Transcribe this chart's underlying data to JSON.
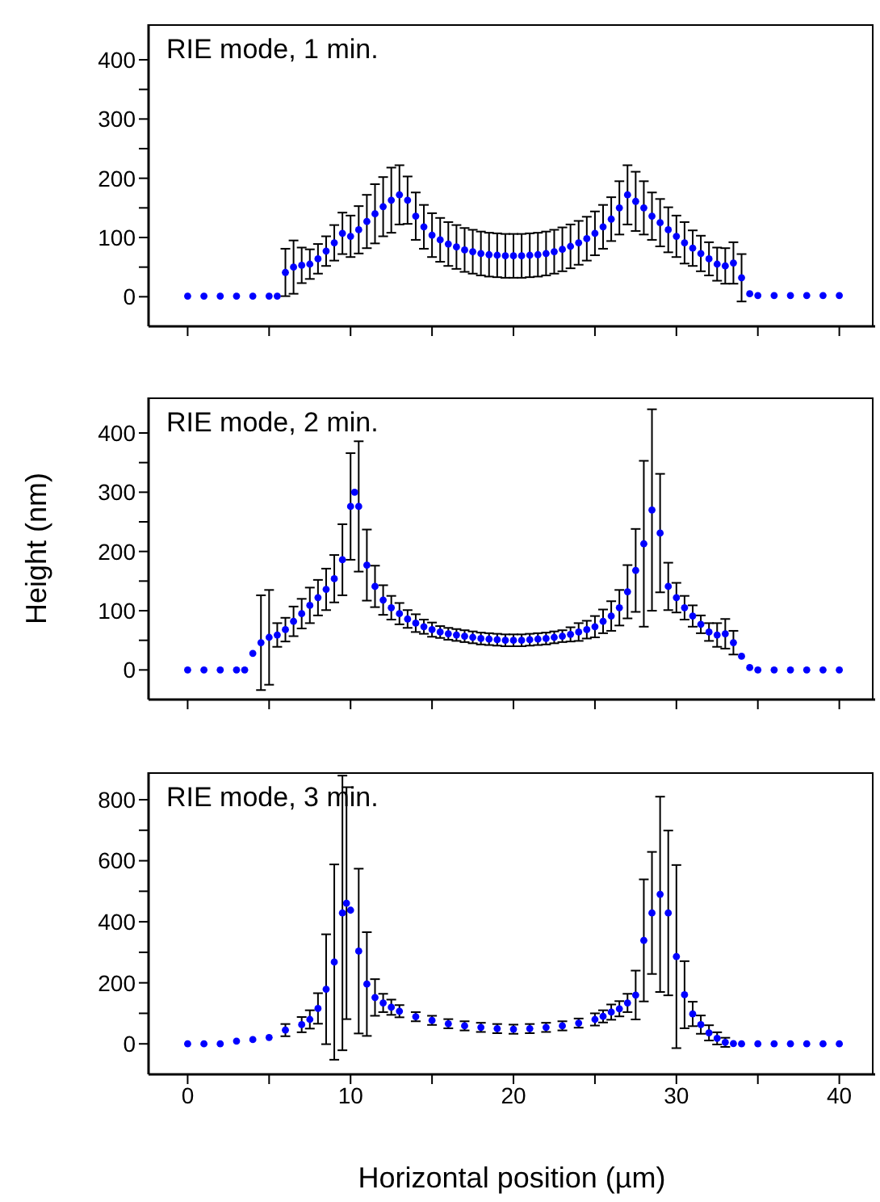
{
  "chart_data": [
    {
      "type": "scatter",
      "title": "RIE mode, 1 min.",
      "marker": "circle",
      "tick_labels": "y",
      "xlim": [
        -2.4,
        42.2
      ],
      "xticks": [
        0,
        {
          "value": 5,
          "label": null
        },
        10,
        {
          "value": 15,
          "label": null
        },
        20,
        {
          "value": 25,
          "label": null
        },
        30,
        {
          "value": 35,
          "label": null
        },
        40
      ],
      "ylim": [
        -50,
        460
      ],
      "yticks": [
        0,
        {
          "value": 50,
          "label": null
        },
        100,
        {
          "value": 150,
          "label": null
        },
        200,
        {
          "value": 250,
          "label": null
        },
        300,
        {
          "value": 350,
          "label": null
        },
        400
      ],
      "x": [
        0,
        1,
        2,
        3,
        4,
        5,
        5.5,
        6,
        6.5,
        7,
        7.5,
        8,
        8.5,
        9,
        9.5,
        10,
        10.5,
        11,
        11.5,
        12,
        12.5,
        13,
        13.5,
        14,
        14.5,
        15,
        15.5,
        16,
        16.5,
        17,
        17.5,
        18,
        18.5,
        19,
        19.5,
        20,
        20.5,
        21,
        21.5,
        22,
        22.5,
        23,
        23.5,
        24,
        24.5,
        25,
        25.5,
        26,
        26.5,
        27,
        27.5,
        28,
        28.5,
        29,
        29.5,
        30,
        30.5,
        31,
        31.5,
        32,
        32.5,
        33,
        33.5,
        34,
        34.5,
        35,
        36,
        37,
        38,
        39,
        40
      ],
      "series": [
        {
          "color": "#0000ff",
          "values": [
            1,
            1,
            1,
            1,
            1,
            1,
            1,
            41,
            50,
            53,
            55,
            64,
            77,
            91,
            107,
            102,
            113,
            127,
            140,
            152,
            163,
            172,
            163,
            136,
            118,
            104,
            96,
            89,
            84,
            79,
            76,
            73,
            71,
            70,
            69,
            69,
            69,
            70,
            71,
            73,
            76,
            80,
            85,
            91,
            98,
            107,
            118,
            131,
            150,
            172,
            161,
            150,
            136,
            125,
            113,
            102,
            91,
            82,
            73,
            64,
            55,
            52,
            57,
            32,
            5,
            2,
            2,
            2,
            2,
            2,
            2
          ],
          "errors": [
            null,
            null,
            null,
            null,
            null,
            null,
            null,
            40,
            45,
            30,
            25,
            25,
            25,
            30,
            35,
            35,
            40,
            45,
            50,
            50,
            55,
            50,
            40,
            40,
            37,
            37,
            37,
            37,
            37,
            37,
            37,
            37,
            37,
            37,
            37,
            37,
            37,
            37,
            37,
            37,
            37,
            37,
            37,
            37,
            37,
            37,
            37,
            37,
            45,
            50,
            50,
            45,
            40,
            40,
            38,
            35,
            35,
            30,
            30,
            28,
            28,
            30,
            35,
            40,
            null,
            null,
            null,
            null,
            null,
            null,
            null
          ]
        }
      ]
    },
    {
      "type": "scatter",
      "title": "RIE mode, 2 min.",
      "ylabel": "Height (nm)",
      "marker": "circle",
      "tick_labels": "y",
      "xlim": [
        -2.4,
        42.2
      ],
      "xticks": [
        0,
        {
          "value": 5,
          "label": null
        },
        10,
        {
          "value": 15,
          "label": null
        },
        20,
        {
          "value": 25,
          "label": null
        },
        30,
        {
          "value": 35,
          "label": null
        },
        40
      ],
      "ylim": [
        -50,
        460
      ],
      "yticks": [
        0,
        {
          "value": 50,
          "label": null
        },
        100,
        {
          "value": 150,
          "label": null
        },
        200,
        {
          "value": 250,
          "label": null
        },
        300,
        {
          "value": 350,
          "label": null
        },
        400
      ],
      "x": [
        0,
        1,
        2,
        3,
        3.5,
        4,
        4.5,
        5,
        5.5,
        6,
        6.5,
        7,
        7.5,
        8,
        8.5,
        9,
        9.5,
        10,
        10.25,
        10.5,
        11,
        11.5,
        12,
        12.5,
        13,
        13.5,
        14,
        14.5,
        15,
        15.5,
        16,
        16.5,
        17,
        17.5,
        18,
        18.5,
        19,
        19.5,
        20,
        20.5,
        21,
        21.5,
        22,
        22.5,
        23,
        23.5,
        24,
        24.5,
        25,
        25.5,
        26,
        26.5,
        27,
        27.5,
        28,
        28.5,
        29,
        29.5,
        30,
        30.5,
        31,
        31.5,
        32,
        32.5,
        33,
        33.5,
        34,
        34.5,
        35,
        36,
        37,
        38,
        39,
        40
      ],
      "series": [
        {
          "color": "#0000ff",
          "values": [
            0,
            0,
            0,
            0,
            0,
            28,
            46,
            55,
            59,
            68,
            82,
            95,
            109,
            122,
            136,
            154,
            186,
            276,
            300,
            276,
            177,
            141,
            118,
            105,
            95,
            86,
            79,
            73,
            68,
            64,
            61,
            59,
            57,
            55,
            53,
            52,
            51,
            50,
            50,
            50,
            51,
            52,
            53,
            55,
            57,
            60,
            64,
            68,
            73,
            82,
            91,
            105,
            132,
            168,
            213,
            270,
            231,
            141,
            122,
            105,
            91,
            77,
            64,
            59,
            61,
            46,
            23,
            4,
            0,
            0,
            0,
            0,
            0,
            0
          ],
          "errors": [
            null,
            null,
            null,
            null,
            null,
            null,
            80,
            80,
            20,
            20,
            25,
            25,
            30,
            30,
            35,
            40,
            60,
            90,
            null,
            110,
            60,
            35,
            25,
            20,
            18,
            15,
            15,
            12,
            12,
            10,
            10,
            10,
            10,
            10,
            10,
            10,
            10,
            10,
            10,
            10,
            10,
            10,
            10,
            10,
            10,
            12,
            15,
            15,
            18,
            20,
            25,
            30,
            45,
            70,
            140,
            170,
            100,
            40,
            25,
            20,
            18,
            15,
            15,
            20,
            25,
            20,
            null,
            null,
            null,
            null,
            null,
            null,
            null,
            null
          ]
        }
      ]
    },
    {
      "type": "scatter",
      "title": "RIE mode, 3 min.",
      "xlabel": "Horizontal position (µm)",
      "marker": "circle",
      "xlim": [
        -2.4,
        42.2
      ],
      "xticks": [
        0,
        {
          "value": 5,
          "label": null
        },
        10,
        {
          "value": 15,
          "label": null
        },
        20,
        {
          "value": 25,
          "label": null
        },
        30,
        {
          "value": 35,
          "label": null
        },
        40
      ],
      "ylim": [
        -100,
        890
      ],
      "yticks": [
        0,
        {
          "value": 100,
          "label": null
        },
        200,
        {
          "value": 300,
          "label": null
        },
        400,
        {
          "value": 500,
          "label": null
        },
        600,
        {
          "value": 700,
          "label": null
        },
        800
      ],
      "x": [
        0,
        1,
        2,
        3,
        4,
        5,
        6,
        7,
        7.5,
        8,
        8.5,
        9,
        9.5,
        9.75,
        10,
        10.5,
        11,
        11.5,
        12,
        12.5,
        13,
        14,
        15,
        16,
        17,
        18,
        19,
        20,
        21,
        22,
        23,
        24,
        25,
        25.5,
        26,
        26.5,
        27,
        27.5,
        28,
        28.5,
        29,
        29.5,
        30,
        30.5,
        31,
        31.5,
        32,
        32.5,
        33,
        33.5,
        34,
        35,
        36,
        37,
        38,
        39,
        40
      ],
      "series": [
        {
          "color": "#0000ff",
          "values": [
            0,
            0,
            0,
            9,
            14,
            21,
            45,
            63,
            80,
            116,
            179,
            268,
            429,
            461,
            438,
            304,
            196,
            152,
            134,
            120,
            107,
            89,
            77,
            66,
            59,
            54,
            50,
            48,
            50,
            54,
            59,
            68,
            80,
            90,
            104,
            115,
            134,
            160,
            339,
            429,
            490,
            429,
            286,
            161,
            98,
            63,
            36,
            18,
            5,
            1,
            0,
            0,
            0,
            0,
            0,
            0,
            0
          ],
          "errors": [
            null,
            null,
            null,
            null,
            null,
            null,
            20,
            25,
            30,
            50,
            180,
            320,
            450,
            380,
            null,
            270,
            170,
            60,
            30,
            25,
            20,
            15,
            15,
            15,
            15,
            15,
            15,
            15,
            15,
            15,
            15,
            15,
            20,
            20,
            25,
            25,
            30,
            80,
            200,
            200,
            320,
            270,
            300,
            110,
            40,
            30,
            25,
            20,
            15,
            null,
            null,
            null,
            null,
            null,
            null,
            null,
            null
          ]
        }
      ]
    }
  ]
}
